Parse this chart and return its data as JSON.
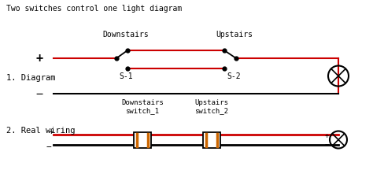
{
  "title": "Two switches control one light diagram",
  "bg_color": "#ffffff",
  "text_color": "#000000",
  "red": "#cc0000",
  "black": "#000000",
  "orange": "#cc6600",
  "section1_label": "1. Diagram",
  "section2_label": "2. Real wiring",
  "diag_downstairs_label": "Downstairs",
  "diag_upstairs_label": "Upstairs",
  "diag_s1_label": "S-1",
  "diag_s2_label": "S-2",
  "real_downstairs_label": "Downstairs\nswitch_1",
  "real_upstairs_label": "Upstairs\nswitch_2",
  "figsize": [
    4.74,
    2.49
  ],
  "dpi": 100
}
